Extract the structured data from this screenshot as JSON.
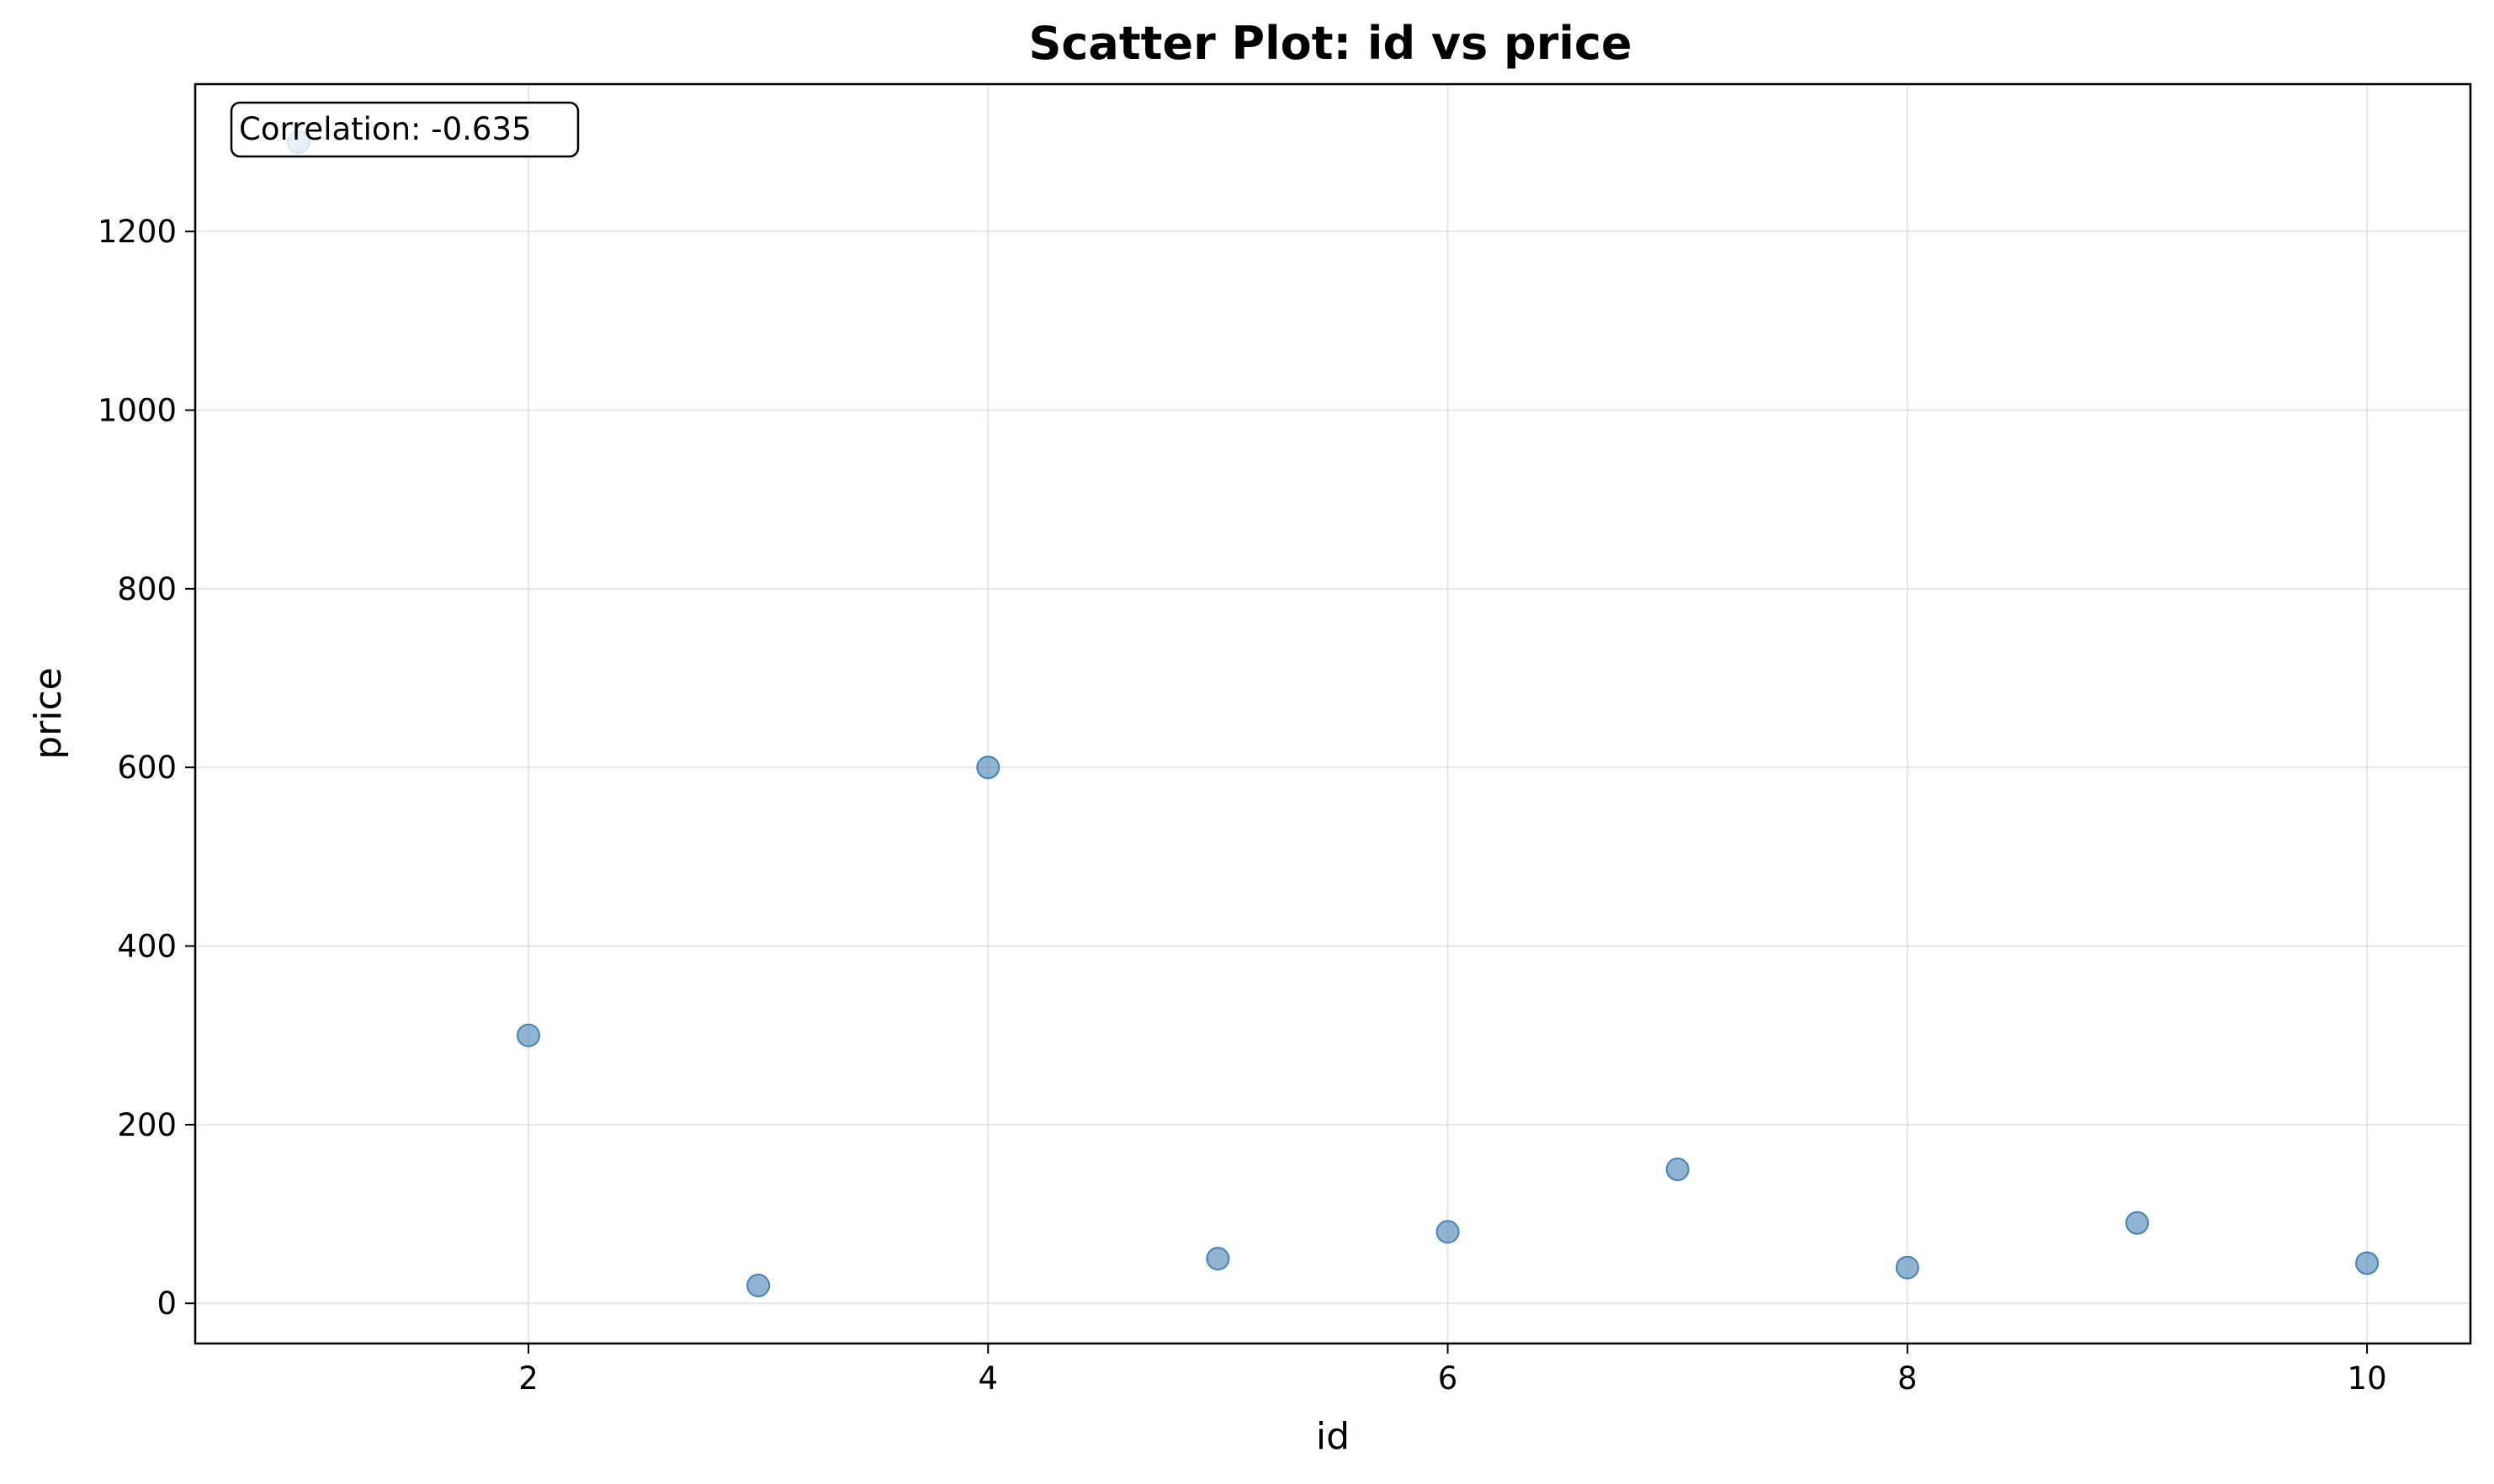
{
  "chart_data": {
    "type": "scatter",
    "title": "Scatter Plot: id vs price",
    "xlabel": "id",
    "ylabel": "price",
    "xlim": [
      0.55,
      10.45
    ],
    "ylim": [
      -45,
      1365
    ],
    "x_ticks": [
      2,
      4,
      6,
      8,
      10
    ],
    "y_ticks": [
      0,
      200,
      400,
      600,
      800,
      1000,
      1200
    ],
    "grid": true,
    "marker_color": "#4682b4",
    "points": [
      {
        "x": 1,
        "y": 1300
      },
      {
        "x": 2,
        "y": 300
      },
      {
        "x": 3,
        "y": 20
      },
      {
        "x": 4,
        "y": 600
      },
      {
        "x": 5,
        "y": 50
      },
      {
        "x": 6,
        "y": 80
      },
      {
        "x": 7,
        "y": 150
      },
      {
        "x": 8,
        "y": 40
      },
      {
        "x": 9,
        "y": 90
      },
      {
        "x": 10,
        "y": 45
      }
    ],
    "annotation": "Correlation: -0.635",
    "annotation_placement": "top-left"
  }
}
